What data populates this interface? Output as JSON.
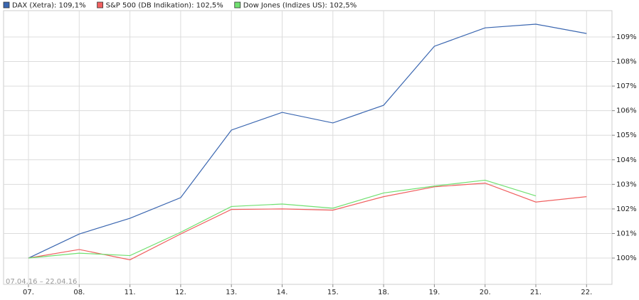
{
  "chart_data": {
    "type": "line",
    "subtitle": "07.04.16 – 22.04.16",
    "categories": [
      "07.",
      "08.",
      "11.",
      "12.",
      "13.",
      "14.",
      "15.",
      "18.",
      "19.",
      "20.",
      "21.",
      "22."
    ],
    "series": [
      {
        "name": "DAX (Xetra): 109,1%",
        "color": "#3a66b0",
        "values": [
          100,
          100.98,
          101.62,
          102.46,
          105.21,
          105.93,
          105.5,
          106.22,
          108.62,
          109.37,
          109.52,
          109.14
        ]
      },
      {
        "name": "S&P 500 (DB Indikation): 102,5%",
        "color": "#f06060",
        "values": [
          100,
          100.35,
          99.93,
          100.98,
          101.98,
          102.0,
          101.95,
          102.5,
          102.9,
          103.05,
          102.28,
          102.5
        ]
      },
      {
        "name": "Dow Jones (Indizes US): 102,5%",
        "color": "#70e070",
        "values": [
          100,
          100.2,
          100.1,
          101.05,
          102.1,
          102.2,
          102.03,
          102.65,
          102.93,
          103.17,
          102.53,
          null
        ]
      }
    ],
    "ylim": [
      98.93,
      110.07
    ],
    "yticks": [
      {
        "value": 100,
        "label": "100%"
      },
      {
        "value": 101,
        "label": "101%"
      },
      {
        "value": 102,
        "label": "102%"
      },
      {
        "value": 103,
        "label": "103%"
      },
      {
        "value": 104,
        "label": "104%"
      },
      {
        "value": 105,
        "label": "105%"
      },
      {
        "value": 106,
        "label": "106%"
      },
      {
        "value": 107,
        "label": "107%"
      },
      {
        "value": 108,
        "label": "108%"
      },
      {
        "value": 109,
        "label": "109%"
      }
    ],
    "grid": true
  }
}
